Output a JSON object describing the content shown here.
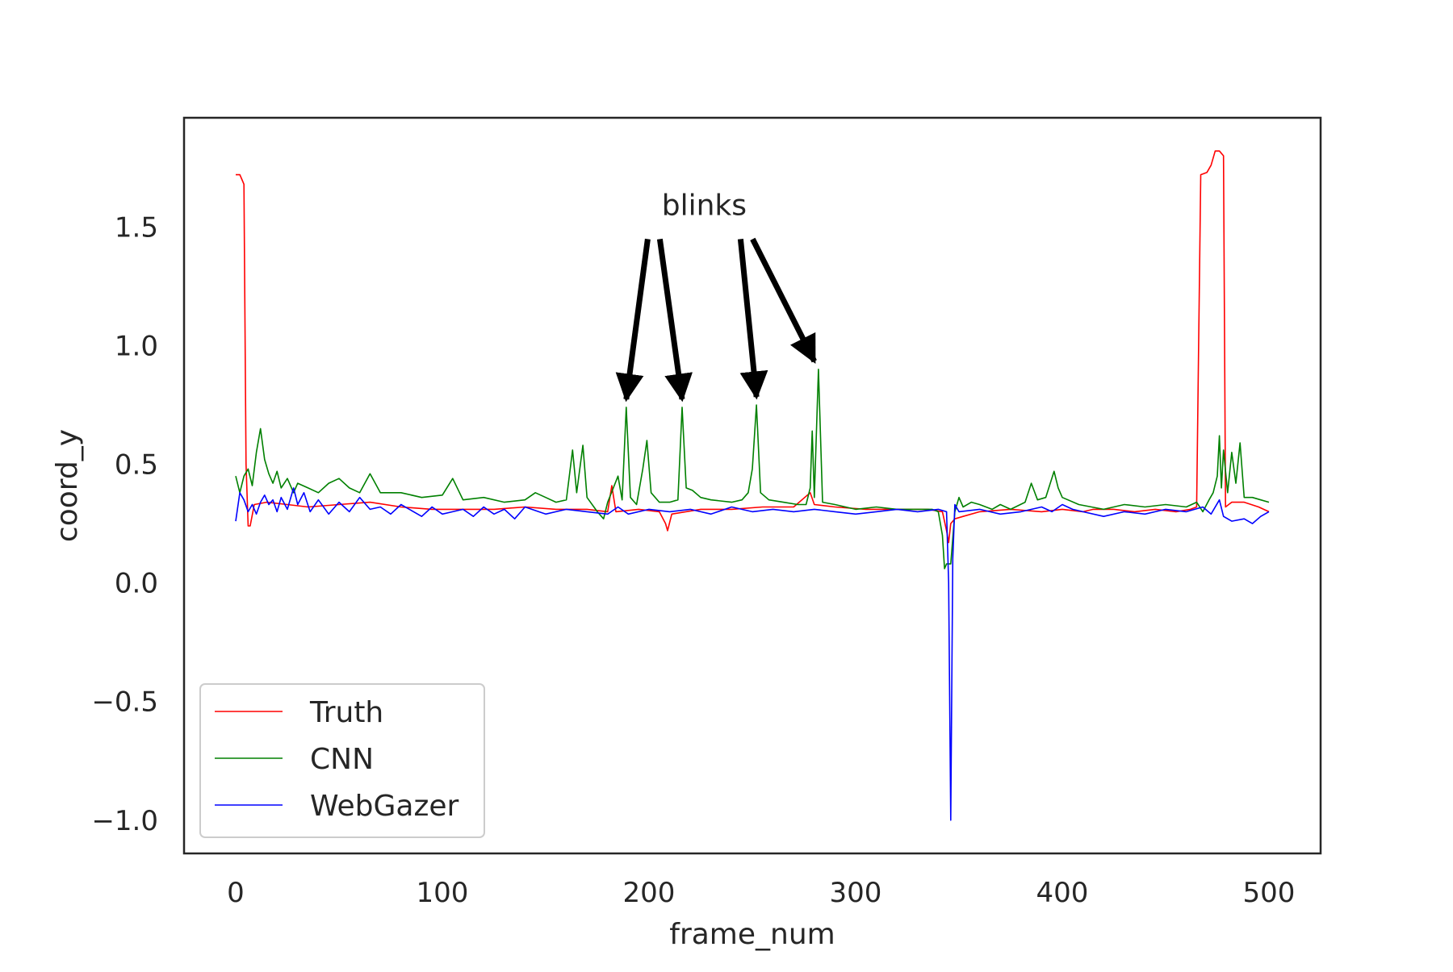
{
  "chart_data": {
    "type": "line",
    "title": "",
    "xlabel": "frame_num",
    "ylabel": "coord_y",
    "xlim": [
      -25,
      525
    ],
    "ylim": [
      -1.14,
      1.96
    ],
    "xticks": [
      0,
      100,
      200,
      300,
      400,
      500
    ],
    "xtick_labels": [
      "0",
      "100",
      "200",
      "300",
      "400",
      "500"
    ],
    "yticks": [
      -1.0,
      -0.5,
      0.0,
      0.5,
      1.0,
      1.5
    ],
    "ytick_labels": [
      "−1.0",
      "−0.5",
      "0.0",
      "0.5",
      "1.0",
      "1.5"
    ],
    "grid": false,
    "legend": "lower-left",
    "annotations": [
      {
        "text": "blinks",
        "targets": [
          [
            189,
            0.74
          ],
          [
            216,
            0.74
          ],
          [
            252,
            0.75
          ],
          [
            280,
            0.9
          ]
        ]
      }
    ],
    "series": [
      {
        "name": "Truth",
        "color": "#ff0000",
        "points": [
          [
            0,
            1.72
          ],
          [
            2,
            1.72
          ],
          [
            3,
            1.7
          ],
          [
            4,
            1.68
          ],
          [
            5,
            0.5
          ],
          [
            6,
            0.24
          ],
          [
            7,
            0.24
          ],
          [
            9,
            0.33
          ],
          [
            15,
            0.34
          ],
          [
            25,
            0.33
          ],
          [
            35,
            0.32
          ],
          [
            50,
            0.33
          ],
          [
            65,
            0.34
          ],
          [
            80,
            0.32
          ],
          [
            95,
            0.31
          ],
          [
            110,
            0.31
          ],
          [
            125,
            0.31
          ],
          [
            140,
            0.32
          ],
          [
            155,
            0.31
          ],
          [
            170,
            0.31
          ],
          [
            180,
            0.3
          ],
          [
            182,
            0.41
          ],
          [
            184,
            0.3
          ],
          [
            195,
            0.31
          ],
          [
            205,
            0.3
          ],
          [
            208,
            0.25
          ],
          [
            209,
            0.22
          ],
          [
            211,
            0.29
          ],
          [
            225,
            0.31
          ],
          [
            240,
            0.31
          ],
          [
            255,
            0.32
          ],
          [
            270,
            0.32
          ],
          [
            278,
            0.38
          ],
          [
            280,
            0.33
          ],
          [
            290,
            0.32
          ],
          [
            305,
            0.31
          ],
          [
            320,
            0.31
          ],
          [
            335,
            0.31
          ],
          [
            342,
            0.3
          ],
          [
            344,
            0.22
          ],
          [
            345,
            0.17
          ],
          [
            346,
            0.25
          ],
          [
            348,
            0.27
          ],
          [
            352,
            0.28
          ],
          [
            360,
            0.3
          ],
          [
            375,
            0.31
          ],
          [
            390,
            0.3
          ],
          [
            400,
            0.31
          ],
          [
            410,
            0.3
          ],
          [
            415,
            0.31
          ],
          [
            425,
            0.31
          ],
          [
            435,
            0.3
          ],
          [
            445,
            0.31
          ],
          [
            455,
            0.3
          ],
          [
            462,
            0.31
          ],
          [
            465,
            0.32
          ],
          [
            467,
            1.72
          ],
          [
            470,
            1.73
          ],
          [
            472,
            1.76
          ],
          [
            474,
            1.82
          ],
          [
            476,
            1.82
          ],
          [
            478,
            1.8
          ],
          [
            479,
            0.32
          ],
          [
            482,
            0.34
          ],
          [
            488,
            0.34
          ],
          [
            495,
            0.32
          ],
          [
            500,
            0.3
          ]
        ]
      },
      {
        "name": "CNN",
        "color": "#008000",
        "points": [
          [
            0,
            0.45
          ],
          [
            2,
            0.38
          ],
          [
            4,
            0.45
          ],
          [
            6,
            0.48
          ],
          [
            8,
            0.41
          ],
          [
            10,
            0.55
          ],
          [
            12,
            0.65
          ],
          [
            14,
            0.52
          ],
          [
            16,
            0.46
          ],
          [
            18,
            0.42
          ],
          [
            20,
            0.47
          ],
          [
            22,
            0.4
          ],
          [
            25,
            0.44
          ],
          [
            28,
            0.38
          ],
          [
            30,
            0.42
          ],
          [
            35,
            0.4
          ],
          [
            40,
            0.38
          ],
          [
            45,
            0.42
          ],
          [
            50,
            0.44
          ],
          [
            55,
            0.4
          ],
          [
            60,
            0.38
          ],
          [
            65,
            0.46
          ],
          [
            70,
            0.38
          ],
          [
            80,
            0.38
          ],
          [
            90,
            0.36
          ],
          [
            100,
            0.37
          ],
          [
            105,
            0.44
          ],
          [
            110,
            0.35
          ],
          [
            120,
            0.36
          ],
          [
            130,
            0.34
          ],
          [
            140,
            0.35
          ],
          [
            145,
            0.38
          ],
          [
            150,
            0.36
          ],
          [
            155,
            0.34
          ],
          [
            160,
            0.35
          ],
          [
            163,
            0.56
          ],
          [
            165,
            0.38
          ],
          [
            168,
            0.58
          ],
          [
            170,
            0.36
          ],
          [
            175,
            0.3
          ],
          [
            178,
            0.27
          ],
          [
            180,
            0.34
          ],
          [
            185,
            0.45
          ],
          [
            187,
            0.35
          ],
          [
            189,
            0.74
          ],
          [
            191,
            0.36
          ],
          [
            194,
            0.33
          ],
          [
            197,
            0.48
          ],
          [
            199,
            0.6
          ],
          [
            201,
            0.38
          ],
          [
            205,
            0.34
          ],
          [
            210,
            0.34
          ],
          [
            214,
            0.35
          ],
          [
            216,
            0.74
          ],
          [
            218,
            0.4
          ],
          [
            221,
            0.39
          ],
          [
            225,
            0.36
          ],
          [
            230,
            0.35
          ],
          [
            240,
            0.34
          ],
          [
            245,
            0.35
          ],
          [
            248,
            0.38
          ],
          [
            250,
            0.48
          ],
          [
            252,
            0.75
          ],
          [
            254,
            0.38
          ],
          [
            258,
            0.35
          ],
          [
            265,
            0.34
          ],
          [
            272,
            0.33
          ],
          [
            276,
            0.33
          ],
          [
            278,
            0.4
          ],
          [
            279,
            0.64
          ],
          [
            280,
            0.36
          ],
          [
            282,
            0.9
          ],
          [
            284,
            0.34
          ],
          [
            290,
            0.33
          ],
          [
            300,
            0.31
          ],
          [
            310,
            0.32
          ],
          [
            320,
            0.31
          ],
          [
            330,
            0.31
          ],
          [
            337,
            0.31
          ],
          [
            340,
            0.3
          ],
          [
            342,
            0.2
          ],
          [
            343,
            0.06
          ],
          [
            344,
            0.08
          ],
          [
            346,
            0.08
          ],
          [
            348,
            0.3
          ],
          [
            350,
            0.36
          ],
          [
            352,
            0.32
          ],
          [
            356,
            0.34
          ],
          [
            360,
            0.33
          ],
          [
            366,
            0.31
          ],
          [
            370,
            0.33
          ],
          [
            375,
            0.31
          ],
          [
            382,
            0.34
          ],
          [
            385,
            0.42
          ],
          [
            388,
            0.35
          ],
          [
            392,
            0.36
          ],
          [
            396,
            0.47
          ],
          [
            398,
            0.4
          ],
          [
            400,
            0.36
          ],
          [
            408,
            0.33
          ],
          [
            420,
            0.31
          ],
          [
            430,
            0.33
          ],
          [
            440,
            0.32
          ],
          [
            450,
            0.33
          ],
          [
            460,
            0.32
          ],
          [
            465,
            0.34
          ],
          [
            468,
            0.3
          ],
          [
            471,
            0.35
          ],
          [
            473,
            0.38
          ],
          [
            475,
            0.45
          ],
          [
            476,
            0.62
          ],
          [
            477,
            0.4
          ],
          [
            478,
            0.56
          ],
          [
            480,
            0.38
          ],
          [
            482,
            0.55
          ],
          [
            484,
            0.42
          ],
          [
            486,
            0.59
          ],
          [
            488,
            0.36
          ],
          [
            492,
            0.36
          ],
          [
            496,
            0.35
          ],
          [
            500,
            0.34
          ]
        ]
      },
      {
        "name": "WebGazer",
        "color": "#0000ff",
        "points": [
          [
            0,
            0.26
          ],
          [
            2,
            0.38
          ],
          [
            4,
            0.35
          ],
          [
            6,
            0.3
          ],
          [
            8,
            0.33
          ],
          [
            10,
            0.29
          ],
          [
            12,
            0.34
          ],
          [
            14,
            0.37
          ],
          [
            16,
            0.33
          ],
          [
            18,
            0.35
          ],
          [
            20,
            0.3
          ],
          [
            22,
            0.36
          ],
          [
            25,
            0.31
          ],
          [
            28,
            0.4
          ],
          [
            30,
            0.33
          ],
          [
            33,
            0.38
          ],
          [
            36,
            0.3
          ],
          [
            40,
            0.35
          ],
          [
            45,
            0.29
          ],
          [
            50,
            0.34
          ],
          [
            55,
            0.3
          ],
          [
            60,
            0.36
          ],
          [
            65,
            0.31
          ],
          [
            70,
            0.32
          ],
          [
            75,
            0.29
          ],
          [
            80,
            0.33
          ],
          [
            90,
            0.28
          ],
          [
            95,
            0.32
          ],
          [
            100,
            0.29
          ],
          [
            105,
            0.3
          ],
          [
            110,
            0.31
          ],
          [
            115,
            0.28
          ],
          [
            120,
            0.32
          ],
          [
            125,
            0.29
          ],
          [
            130,
            0.31
          ],
          [
            135,
            0.27
          ],
          [
            140,
            0.32
          ],
          [
            150,
            0.29
          ],
          [
            160,
            0.31
          ],
          [
            170,
            0.3
          ],
          [
            180,
            0.29
          ],
          [
            185,
            0.32
          ],
          [
            190,
            0.29
          ],
          [
            200,
            0.31
          ],
          [
            210,
            0.3
          ],
          [
            220,
            0.31
          ],
          [
            230,
            0.29
          ],
          [
            240,
            0.32
          ],
          [
            250,
            0.3
          ],
          [
            260,
            0.31
          ],
          [
            270,
            0.3
          ],
          [
            280,
            0.31
          ],
          [
            290,
            0.3
          ],
          [
            300,
            0.29
          ],
          [
            310,
            0.3
          ],
          [
            320,
            0.31
          ],
          [
            330,
            0.3
          ],
          [
            340,
            0.31
          ],
          [
            344,
            0.3
          ],
          [
            345,
            0.0
          ],
          [
            346,
            -1.0
          ],
          [
            347,
            0.1
          ],
          [
            348,
            0.33
          ],
          [
            350,
            0.3
          ],
          [
            360,
            0.31
          ],
          [
            370,
            0.29
          ],
          [
            380,
            0.3
          ],
          [
            390,
            0.32
          ],
          [
            395,
            0.3
          ],
          [
            400,
            0.33
          ],
          [
            405,
            0.31
          ],
          [
            410,
            0.3
          ],
          [
            420,
            0.28
          ],
          [
            430,
            0.3
          ],
          [
            440,
            0.29
          ],
          [
            450,
            0.31
          ],
          [
            460,
            0.3
          ],
          [
            468,
            0.32
          ],
          [
            472,
            0.29
          ],
          [
            476,
            0.35
          ],
          [
            478,
            0.28
          ],
          [
            482,
            0.26
          ],
          [
            488,
            0.27
          ],
          [
            492,
            0.25
          ],
          [
            496,
            0.28
          ],
          [
            500,
            0.3
          ]
        ]
      }
    ]
  }
}
